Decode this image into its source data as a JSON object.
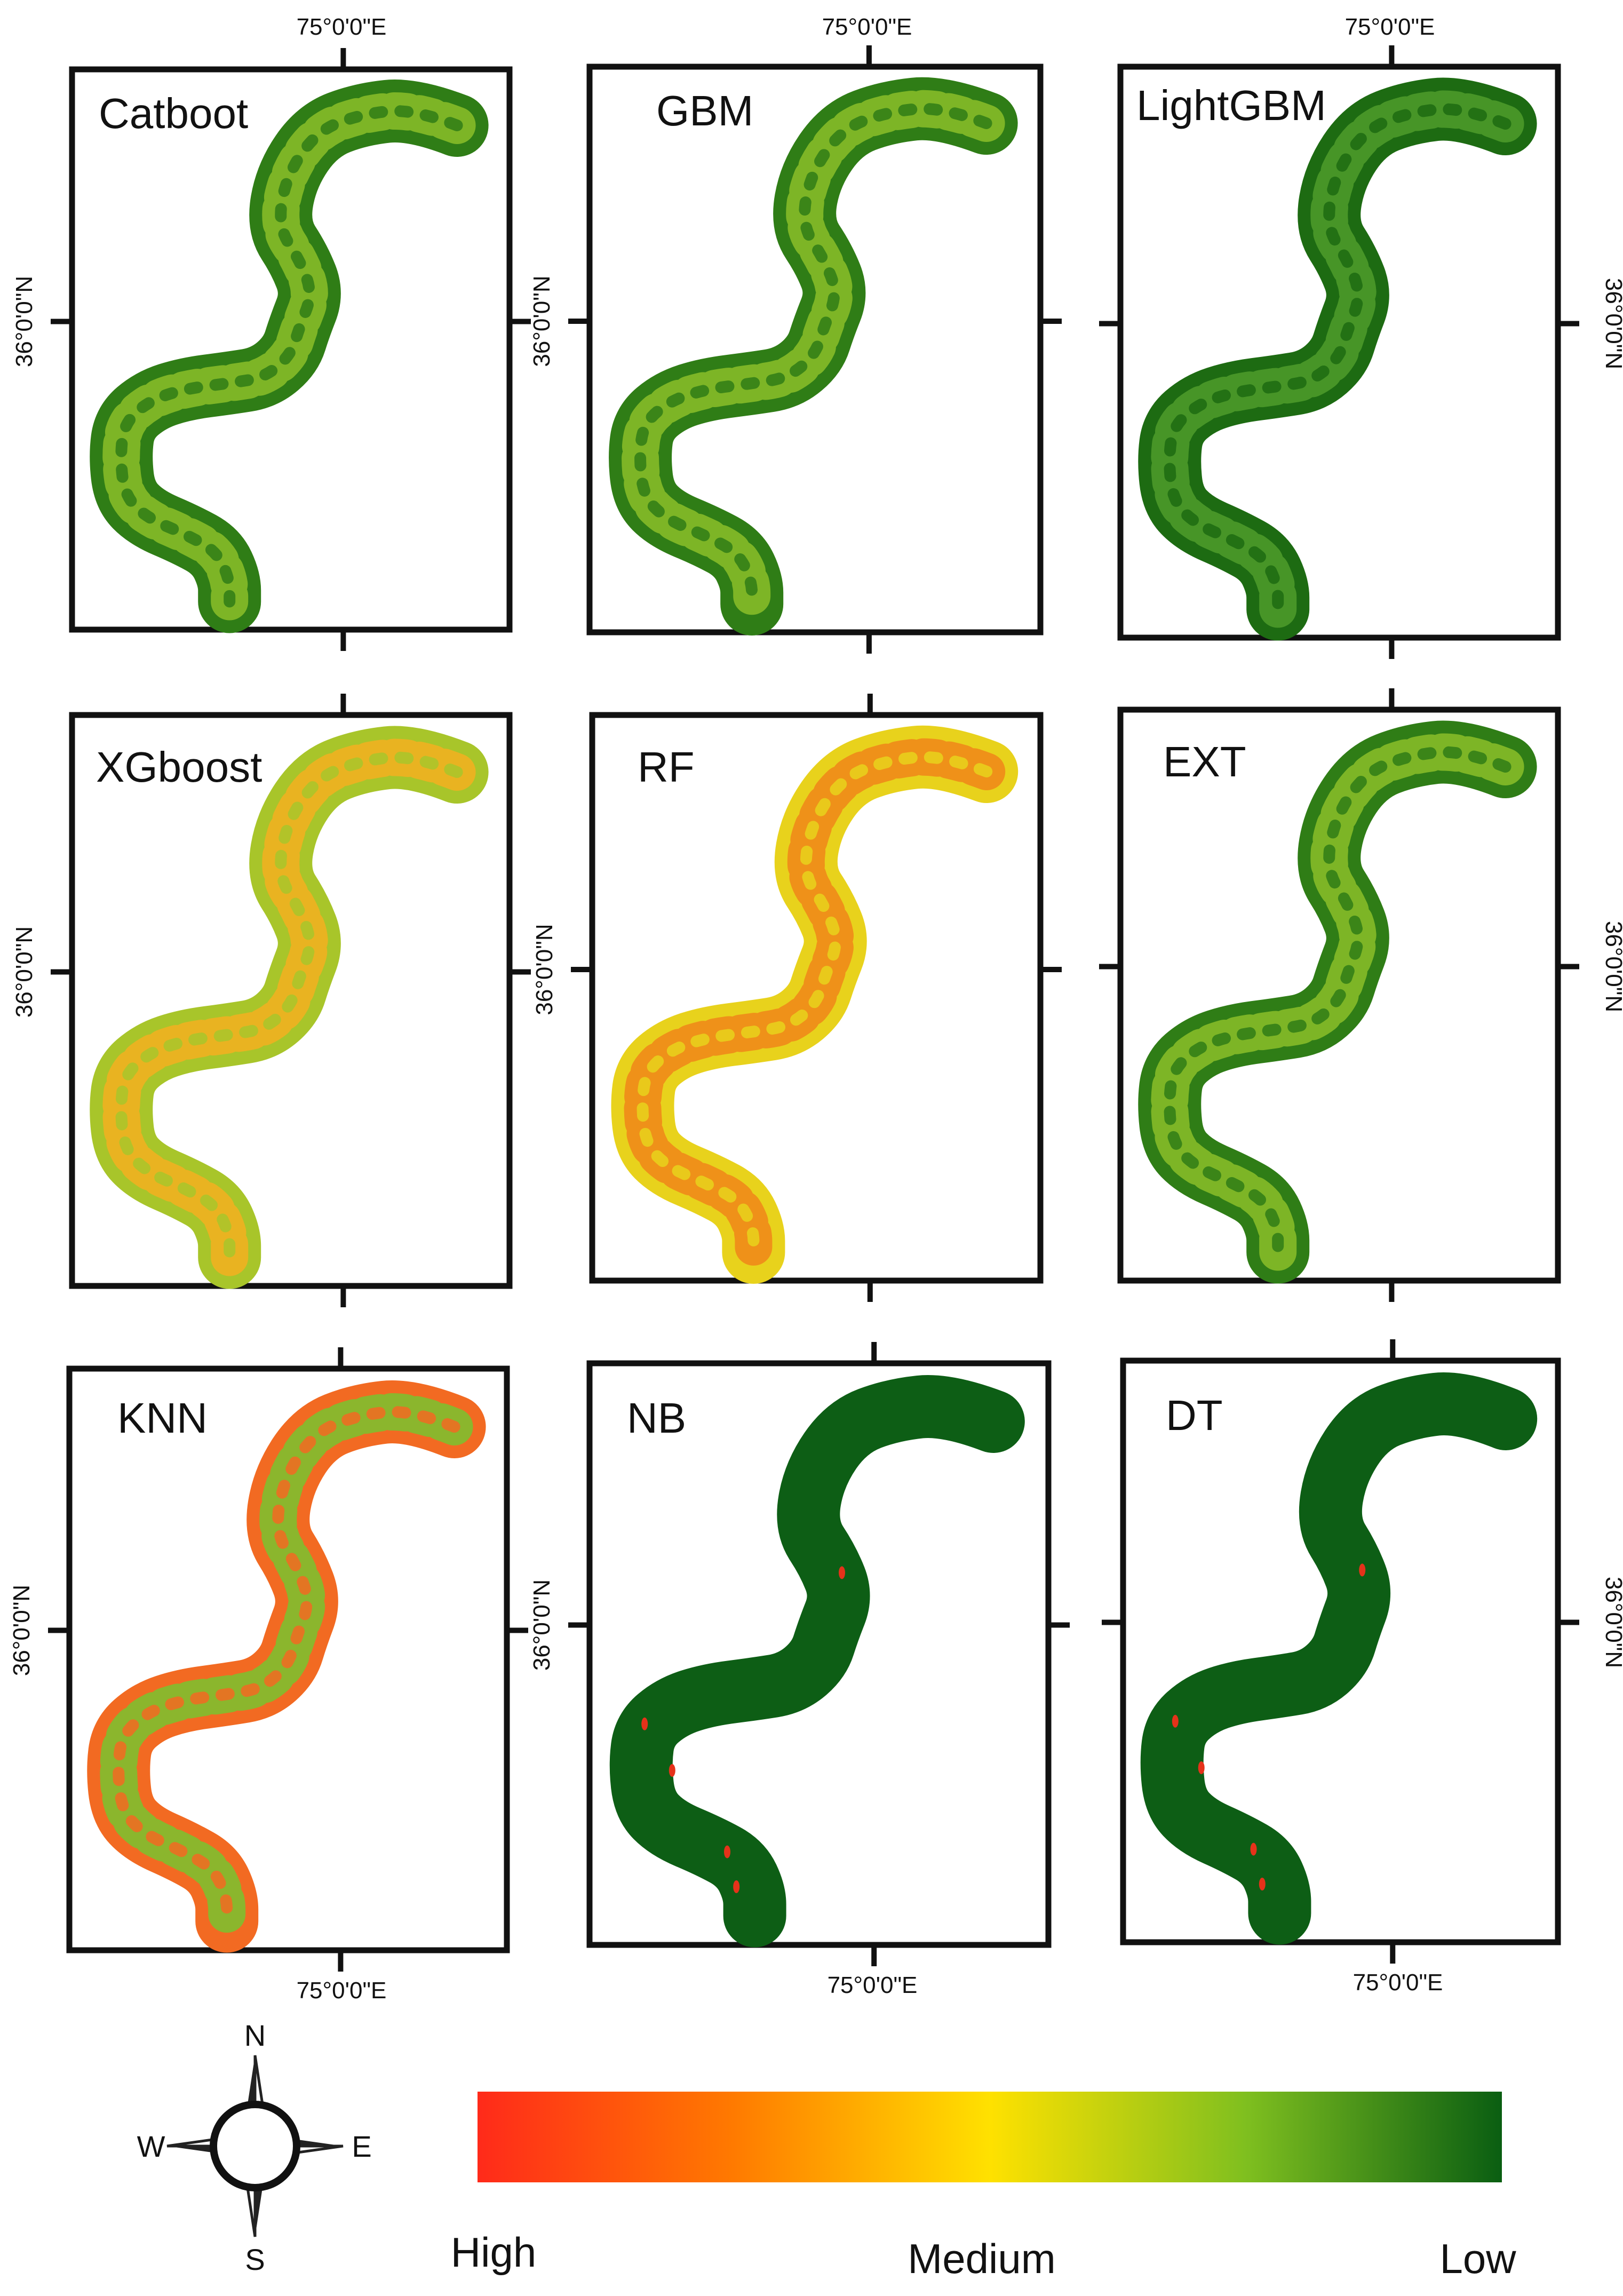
{
  "figure": {
    "panels": [
      {
        "id": "catboost",
        "title": "Catboot",
        "scheme": "green-mixed"
      },
      {
        "id": "gbm",
        "title": "GBM",
        "scheme": "green-mixed"
      },
      {
        "id": "lightgbm",
        "title": "LightGBM",
        "scheme": "green-dark"
      },
      {
        "id": "xgboost",
        "title": "XGboost",
        "scheme": "yellow-green"
      },
      {
        "id": "rf",
        "title": "RF",
        "scheme": "yellow-red"
      },
      {
        "id": "ext",
        "title": "EXT",
        "scheme": "green-mixed"
      },
      {
        "id": "knn",
        "title": "KNN",
        "scheme": "red-orange"
      },
      {
        "id": "nb",
        "title": "NB",
        "scheme": "solid-dark-green"
      },
      {
        "id": "dt",
        "title": "DT",
        "scheme": "solid-dark-green"
      }
    ],
    "coordinates": {
      "longitude_label": "75°0'0\"E",
      "latitude_label": "36°0'0\"N"
    },
    "compass": {
      "north": "N",
      "south": "S",
      "east": "E",
      "west": "W"
    },
    "legend": {
      "high_label": "High",
      "medium_label": "Medium",
      "low_label": "Low",
      "colors": {
        "high": "#ff2a1a",
        "orange": "#ff7a00",
        "medium": "#ffe100",
        "light_green": "#7fbf1f",
        "low": "#0a5e12"
      }
    },
    "scheme_colors": {
      "green-mixed": [
        "#2f7d16",
        "#86bb28"
      ],
      "green-dark": [
        "#1d6b12",
        "#4c9a2a"
      ],
      "yellow-green": [
        "#a8c52a",
        "#f0b020"
      ],
      "yellow-red": [
        "#e8d21c",
        "#f08a1a"
      ],
      "red-orange": [
        "#f26a22",
        "#7fbf2f"
      ],
      "solid-dark-green": [
        "#0d5e15",
        "#0d5e15"
      ]
    }
  }
}
